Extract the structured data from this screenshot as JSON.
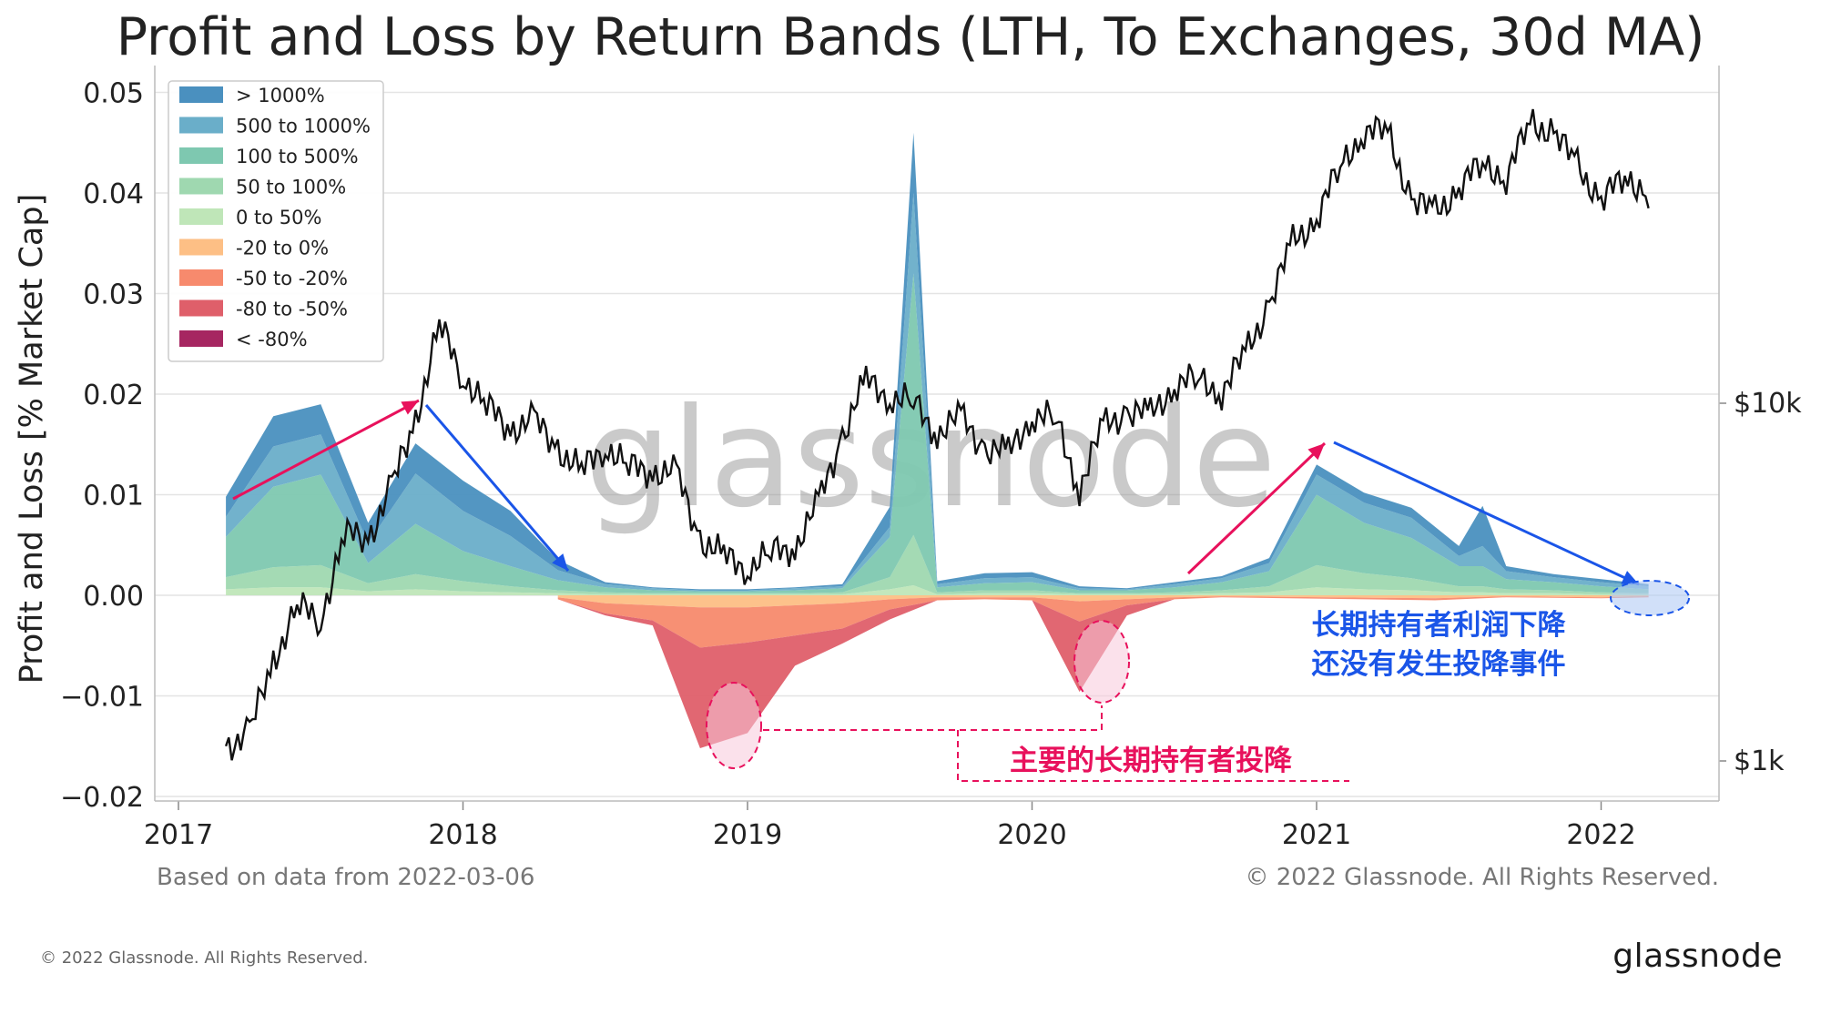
{
  "chart_data": {
    "type": "area",
    "title": "Profit and Loss by Return Bands (LTH, To Exchanges, 30d MA)",
    "ylabel": "Profit and Loss [% Market Cap]",
    "ylim": [
      -0.02,
      0.05
    ],
    "yticks": [
      "0.05",
      "0.04",
      "0.03",
      "0.02",
      "0.01",
      "0.00",
      "−0.01",
      "−0.02"
    ],
    "xticks": [
      "2017",
      "2018",
      "2019",
      "2020",
      "2021",
      "2022"
    ],
    "right_axis_ticks": [
      "$10k",
      "$1k"
    ],
    "right_axis_scale": "log",
    "grid": true,
    "legend_position": "top-left",
    "series": [
      {
        "name": "> 1000%",
        "color": "#4a90bf",
        "x": [
          "2017-03",
          "2017-05",
          "2017-07",
          "2017-09",
          "2017-11",
          "2018-01",
          "2018-03",
          "2018-05",
          "2018-07",
          "2018-09",
          "2018-11",
          "2019-01",
          "2019-03",
          "2019-05",
          "2019-07",
          "2019-08",
          "2019-09",
          "2019-11",
          "2020-01",
          "2020-03",
          "2020-05",
          "2020-07",
          "2020-09",
          "2020-11",
          "2021-01",
          "2021-03",
          "2021-05",
          "2021-07",
          "2021-08",
          "2021-09",
          "2021-11",
          "2022-01",
          "2022-03"
        ],
        "y": [
          0.002,
          0.003,
          0.003,
          0.002,
          0.003,
          0.003,
          0.0025,
          0.001,
          0.0002,
          0.0001,
          0.0001,
          0.0001,
          0.0001,
          0.0002,
          0.002,
          0.006,
          0.0003,
          0.0005,
          0.0005,
          0.0002,
          0.0001,
          0.0002,
          0.0002,
          0.0005,
          0.001,
          0.001,
          0.001,
          0.001,
          0.004,
          0.0005,
          0.0003,
          0.0003,
          0.0002
        ]
      },
      {
        "name": "500 to 1000%",
        "color": "#6aaec9",
        "x": [
          "2017-03",
          "2017-05",
          "2017-07",
          "2017-09",
          "2017-11",
          "2018-01",
          "2018-03",
          "2018-05",
          "2018-07",
          "2018-09",
          "2018-11",
          "2019-01",
          "2019-03",
          "2019-05",
          "2019-07",
          "2019-08",
          "2019-09",
          "2019-11",
          "2020-01",
          "2020-03",
          "2020-05",
          "2020-07",
          "2020-09",
          "2020-11",
          "2021-01",
          "2021-03",
          "2021-05",
          "2021-07",
          "2021-08",
          "2021-09",
          "2021-11",
          "2022-01",
          "2022-03"
        ],
        "y": [
          0.002,
          0.004,
          0.004,
          0.002,
          0.005,
          0.004,
          0.003,
          0.001,
          0.0003,
          0.0002,
          0.0001,
          0.0001,
          0.0002,
          0.0002,
          0.001,
          0.008,
          0.0003,
          0.0005,
          0.0005,
          0.0002,
          0.0001,
          0.0003,
          0.0004,
          0.0008,
          0.002,
          0.002,
          0.002,
          0.001,
          0.002,
          0.0008,
          0.0005,
          0.0004,
          0.0003
        ]
      },
      {
        "name": "100 to 500%",
        "color": "#7ec8b0",
        "x": [
          "2017-03",
          "2017-05",
          "2017-07",
          "2017-09",
          "2017-11",
          "2018-01",
          "2018-03",
          "2018-05",
          "2018-07",
          "2018-09",
          "2018-11",
          "2019-01",
          "2019-03",
          "2019-05",
          "2019-07",
          "2019-08",
          "2019-09",
          "2019-11",
          "2020-01",
          "2020-03",
          "2020-05",
          "2020-07",
          "2020-09",
          "2020-11",
          "2021-01",
          "2021-03",
          "2021-05",
          "2021-07",
          "2021-08",
          "2021-09",
          "2021-11",
          "2022-01",
          "2022-03"
        ],
        "y": [
          0.004,
          0.008,
          0.009,
          0.002,
          0.005,
          0.003,
          0.002,
          0.001,
          0.0005,
          0.0003,
          0.0002,
          0.0002,
          0.0003,
          0.0004,
          0.004,
          0.026,
          0.0005,
          0.0007,
          0.0008,
          0.0003,
          0.0003,
          0.0005,
          0.0008,
          0.0015,
          0.007,
          0.005,
          0.004,
          0.002,
          0.002,
          0.001,
          0.0008,
          0.0006,
          0.0004
        ]
      },
      {
        "name": "50 to 100%",
        "color": "#9fd8b0",
        "x": [
          "2017-03",
          "2017-05",
          "2017-07",
          "2017-09",
          "2017-11",
          "2018-01",
          "2018-03",
          "2018-05",
          "2018-07",
          "2018-09",
          "2018-11",
          "2019-01",
          "2019-03",
          "2019-05",
          "2019-07",
          "2019-08",
          "2019-09",
          "2019-11",
          "2020-01",
          "2020-03",
          "2020-05",
          "2020-07",
          "2020-09",
          "2020-11",
          "2021-01",
          "2021-03",
          "2021-05",
          "2021-07",
          "2021-08",
          "2021-09",
          "2021-11",
          "2022-01",
          "2022-03"
        ],
        "y": [
          0.0012,
          0.002,
          0.0022,
          0.0008,
          0.0015,
          0.001,
          0.0006,
          0.0003,
          0.0002,
          0.0001,
          0.0001,
          0.0001,
          0.0001,
          0.0002,
          0.0012,
          0.005,
          0.0002,
          0.0003,
          0.0003,
          0.0001,
          0.0001,
          0.0002,
          0.0003,
          0.0006,
          0.0022,
          0.0016,
          0.0012,
          0.0006,
          0.0006,
          0.0004,
          0.0003,
          0.0002,
          0.0001
        ]
      },
      {
        "name": "0 to 50%",
        "color": "#bfe6b8",
        "x": [
          "2017-03",
          "2017-05",
          "2017-07",
          "2017-09",
          "2017-11",
          "2018-01",
          "2018-03",
          "2018-05",
          "2018-07",
          "2018-09",
          "2018-11",
          "2019-01",
          "2019-03",
          "2019-05",
          "2019-07",
          "2019-08",
          "2019-09",
          "2019-11",
          "2020-01",
          "2020-03",
          "2020-05",
          "2020-07",
          "2020-09",
          "2020-11",
          "2021-01",
          "2021-03",
          "2021-05",
          "2021-07",
          "2021-08",
          "2021-09",
          "2021-11",
          "2022-01",
          "2022-03"
        ],
        "y": [
          0.0006,
          0.0008,
          0.0008,
          0.0004,
          0.0006,
          0.0004,
          0.0003,
          0.0002,
          0.0001,
          0.0001,
          0.0001,
          0.0001,
          0.0001,
          0.0001,
          0.0006,
          0.001,
          0.0001,
          0.0002,
          0.0002,
          0.0001,
          0.0001,
          0.0001,
          0.0002,
          0.0003,
          0.0008,
          0.0006,
          0.0005,
          0.0003,
          0.0003,
          0.0002,
          0.0002,
          0.0001,
          0.0001
        ]
      },
      {
        "name": "-20 to 0%",
        "color": "#fdbf85",
        "x": [
          "2018-05",
          "2018-07",
          "2018-09",
          "2018-11",
          "2019-01",
          "2019-03",
          "2019-05",
          "2019-07",
          "2019-09",
          "2019-11",
          "2020-01",
          "2020-03",
          "2020-05",
          "2020-07",
          "2020-09",
          "2021-06",
          "2021-09",
          "2022-01",
          "2022-03"
        ],
        "y": [
          -0.0002,
          -0.0008,
          -0.001,
          -0.0012,
          -0.0012,
          -0.001,
          -0.0008,
          -0.0004,
          -0.0002,
          -0.0002,
          -0.0002,
          -0.0006,
          -0.0004,
          -0.0002,
          -0.0001,
          -0.0003,
          -0.0001,
          -0.0002,
          -0.0001
        ]
      },
      {
        "name": "-50 to -20%",
        "color": "#f78a6d",
        "x": [
          "2018-05",
          "2018-07",
          "2018-09",
          "2018-11",
          "2019-01",
          "2019-03",
          "2019-05",
          "2019-07",
          "2019-09",
          "2019-11",
          "2020-01",
          "2020-03",
          "2020-05",
          "2020-07",
          "2020-09",
          "2021-06",
          "2021-09",
          "2022-01",
          "2022-03"
        ],
        "y": [
          -0.0002,
          -0.001,
          -0.0015,
          -0.004,
          -0.0035,
          -0.003,
          -0.0025,
          -0.001,
          -0.0003,
          -0.0002,
          -0.0003,
          -0.002,
          -0.0006,
          -0.0002,
          -0.0001,
          -0.0002,
          -0.0001,
          -0.0001,
          -0.0001
        ]
      },
      {
        "name": "-80 to -50%",
        "color": "#df5f6a",
        "x": [
          "2018-05",
          "2018-07",
          "2018-09",
          "2018-11",
          "2019-01",
          "2019-03",
          "2019-05",
          "2019-07",
          "2019-09",
          "2019-11",
          "2020-01",
          "2020-03",
          "2020-05",
          "2020-07",
          "2020-09",
          "2021-06",
          "2021-09",
          "2022-01",
          "2022-03"
        ],
        "y": [
          0,
          -0.0002,
          -0.0005,
          -0.01,
          -0.009,
          -0.003,
          -0.0015,
          -0.001,
          0,
          0,
          0,
          -0.007,
          -0.001,
          0,
          0,
          0,
          0,
          0,
          0
        ]
      },
      {
        "name": "< -80%",
        "color": "#a62661",
        "x": [
          "2018-11",
          "2019-01",
          "2019-03"
        ],
        "y": [
          0,
          0,
          0
        ]
      }
    ],
    "price_line": {
      "color": "#111111"
    }
  },
  "watermark": "glassnode",
  "footer": {
    "left": "Based on data from 2022-03-06",
    "right": "© 2022 Glassnode. All Rights Reserved."
  },
  "page_footer": {
    "left": "© 2022 Glassnode. All Rights Reserved.",
    "brand": "glassnode"
  },
  "annotations": {
    "blue_line1": "长期持有者利润下降",
    "blue_line2": "还没有发生投降事件",
    "pink_label": "主要的长期持有者投降",
    "blue_color": "#1a55e8",
    "pink_color": "#e8115c"
  }
}
